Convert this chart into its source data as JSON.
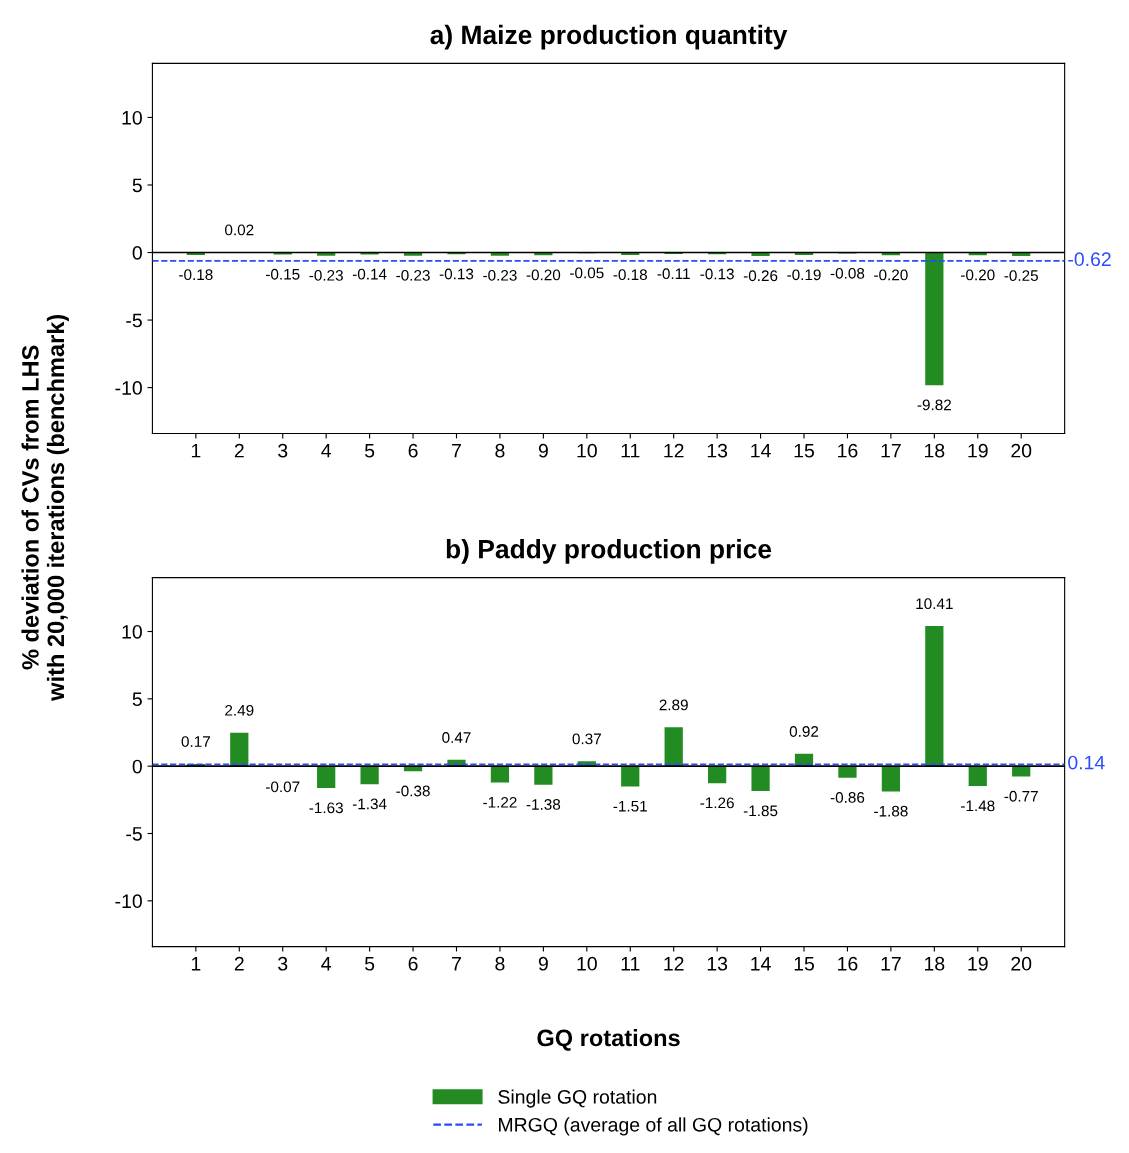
{
  "chart_data": [
    {
      "type": "bar",
      "title": "a) Maize production quantity",
      "ylabel": "% deviation of CVs from LHS\nwith 20,000 iterations (benchmark)",
      "categories": [
        "1",
        "2",
        "3",
        "4",
        "5",
        "6",
        "7",
        "8",
        "9",
        "10",
        "11",
        "12",
        "13",
        "14",
        "15",
        "16",
        "17",
        "18",
        "19",
        "20"
      ],
      "series": [
        {
          "color": "#228b22",
          "values": [
            -0.18,
            0.02,
            -0.15,
            -0.23,
            -0.14,
            -0.23,
            -0.13,
            -0.23,
            -0.2,
            -0.05,
            -0.18,
            -0.11,
            -0.13,
            -0.26,
            -0.19,
            -0.08,
            -0.2,
            -9.82,
            -0.2,
            -0.25
          ],
          "value_labels": [
            "-0.18",
            "0.02",
            "-0.15",
            "-0.23",
            "-0.14",
            "-0.23",
            "-0.13",
            "-0.23",
            "-0.20",
            "-0.05",
            "-0.18",
            "-0.11",
            "-0.13",
            "-0.26",
            "-0.19",
            "-0.08",
            "-0.20",
            "-9.82",
            "-0.20",
            "-0.25"
          ]
        }
      ],
      "ylim": [
        -13.4,
        14
      ],
      "yticks": [
        -10,
        -5,
        0,
        5,
        10
      ],
      "ref_lines": [
        {
          "axis": "y",
          "value": 0,
          "color": "#000000",
          "line_style": "solid"
        },
        {
          "axis": "y",
          "value": -0.62,
          "label": "-0.62",
          "color": "#2b4bff",
          "line_style": "dashed"
        }
      ],
      "grid": false,
      "legend": false
    },
    {
      "type": "bar",
      "title": "b) Paddy production price",
      "xlabel": "GQ rotations",
      "categories": [
        "1",
        "2",
        "3",
        "4",
        "5",
        "6",
        "7",
        "8",
        "9",
        "10",
        "11",
        "12",
        "13",
        "14",
        "15",
        "16",
        "17",
        "18",
        "19",
        "20"
      ],
      "series": [
        {
          "name": "Single GQ rotation",
          "color": "#228b22",
          "values": [
            0.17,
            2.49,
            -0.07,
            -1.63,
            -1.34,
            -0.38,
            0.47,
            -1.22,
            -1.38,
            0.37,
            -1.51,
            2.89,
            -1.26,
            -1.85,
            0.92,
            -0.86,
            -1.88,
            10.41,
            -1.48,
            -0.77
          ],
          "value_labels": [
            "0.17",
            "2.49",
            "-0.07",
            "-1.63",
            "-1.34",
            "-0.38",
            "0.47",
            "-1.22",
            "-1.38",
            "0.37",
            "-1.51",
            "2.89",
            "-1.26",
            "-1.85",
            "0.92",
            "-0.86",
            "-1.88",
            "10.41",
            "-1.48",
            "-0.77"
          ]
        }
      ],
      "annotations": [
        "MRGQ (average of all GQ rotations)"
      ],
      "ylim": [
        -13.4,
        14
      ],
      "yticks": [
        -10,
        -5,
        0,
        5,
        10
      ],
      "ref_lines": [
        {
          "axis": "y",
          "value": 0,
          "color": "#000000",
          "line_style": "solid"
        },
        {
          "axis": "y",
          "value": 0.14,
          "label": "0.14",
          "color": "#2b4bff",
          "line_style": "dashed"
        }
      ],
      "grid": false,
      "legend": "bottom"
    }
  ]
}
